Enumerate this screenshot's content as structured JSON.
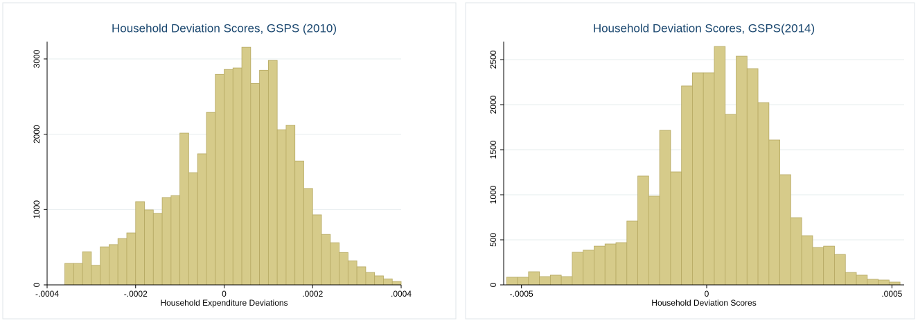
{
  "chart_data": [
    {
      "type": "histogram",
      "title": "Household Deviation Scores, GSPS (2010)",
      "x_label": "Household Expenditure Deviations",
      "color": "#d6cb8a",
      "edge_color": "#b5a862",
      "bins": [
        -0.00036,
        -0.00034,
        -0.00032,
        -0.0003,
        -0.00028,
        -0.00026,
        -0.00024,
        -0.00022,
        -0.0002,
        -0.00018,
        -0.00016,
        -0.00014,
        -0.00012,
        -0.0001,
        -8e-05,
        -6e-05,
        -4e-05,
        -2e-05,
        0,
        2e-05,
        4e-05,
        6e-05,
        8e-05,
        0.0001,
        0.00012,
        0.00014,
        0.00016,
        0.00018,
        0.0002,
        0.00022,
        0.00024,
        0.00026,
        0.00028,
        0.0003,
        0.00032,
        0.00034,
        0.00036,
        0.00038,
        0.0004
      ],
      "counts": [
        285,
        285,
        440,
        260,
        505,
        535,
        615,
        690,
        1105,
        995,
        950,
        1160,
        1185,
        2015,
        1490,
        1740,
        2290,
        2795,
        2860,
        2880,
        3155,
        2675,
        2850,
        2980,
        2060,
        2120,
        1645,
        1280,
        930,
        670,
        560,
        430,
        320,
        240,
        165,
        120,
        80,
        45
      ],
      "xlim": [
        -0.0004,
        0.0004
      ],
      "xticks": [
        {
          "value": -0.0004,
          "label": "-.0004"
        },
        {
          "value": -0.0002,
          "label": "-.0002"
        },
        0,
        {
          "value": 0.0002,
          "label": ".0002"
        },
        {
          "value": 0.0004,
          "label": ".0004"
        }
      ],
      "ylim": [
        0,
        3230
      ],
      "yticks": [
        0,
        1000,
        2000,
        3000
      ],
      "grid": true
    },
    {
      "type": "histogram",
      "title": "Household Deviation Scores, GSPS(2014)",
      "x_label": "Household Deviation Scores",
      "color": "#d6cb8a",
      "edge_color": "#b5a862",
      "bins": [
        -0.00054,
        -0.0005105,
        -0.000481,
        -0.0004515,
        -0.000422,
        -0.0003925,
        -0.000363,
        -0.0003335,
        -0.000304,
        -0.0002745,
        -0.000245,
        -0.0002155,
        -0.000186,
        -0.0001565,
        -0.000127,
        -9.75e-05,
        -6.8e-05,
        -3.85e-05,
        -9e-06,
        2.05e-05,
        5e-05,
        7.95e-05,
        0.000109,
        0.0001385,
        0.000168,
        0.0001975,
        0.000227,
        0.0002565,
        0.000286,
        0.0003155,
        0.000345,
        0.0003745,
        0.000404,
        0.0004335,
        0.000463,
        0.0004925,
        0.000522
      ],
      "counts": [
        85,
        85,
        146,
        92,
        108,
        92,
        362,
        385,
        430,
        454,
        469,
        708,
        1208,
        985,
        1715,
        1254,
        2208,
        2354,
        2354,
        2646,
        1892,
        2538,
        2400,
        2023,
        1608,
        1223,
        746,
        546,
        415,
        430,
        338,
        138,
        108,
        62,
        54,
        31
      ],
      "xlim": [
        -0.000548,
        0.000533
      ],
      "xticks": [
        {
          "value": -0.0005,
          "label": "-.0005"
        },
        0,
        {
          "value": 0.0005,
          "label": ".0005"
        }
      ],
      "ylim": [
        0,
        2700
      ],
      "yticks": [
        0,
        500,
        1000,
        1500,
        2000,
        2500
      ],
      "grid": true
    }
  ]
}
